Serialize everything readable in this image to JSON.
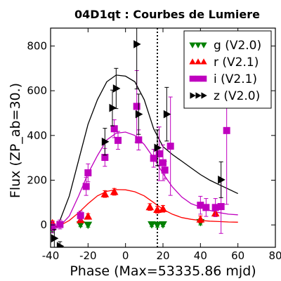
{
  "chart_data": {
    "type": "scatter",
    "title": "04D1qt : Courbes de Lumiere",
    "xlabel": "Phase (Max=53335.86 mjd)",
    "ylabel": "Flux (ZP_ab=30.)",
    "xlim": [
      -40,
      80
    ],
    "ylim": [
      -100,
      880
    ],
    "xticks": [
      -40,
      -20,
      0,
      20,
      40,
      60,
      80
    ],
    "xtick_labels": [
      "-40",
      "-20",
      "0",
      "20",
      "40",
      "60",
      "80"
    ],
    "yticks": [
      0,
      200,
      400,
      600,
      800
    ],
    "ytick_labels": [
      "0",
      "200",
      "400",
      "600",
      "800"
    ],
    "vline_x": 17,
    "grid": false,
    "legend_position": "top-right",
    "series": [
      {
        "name": "g (V2.0)",
        "color": "#008000",
        "marker": "triangle-down",
        "points": [
          {
            "x": -39,
            "y": -20,
            "err": 15
          },
          {
            "x": -24,
            "y": 2,
            "err": 10
          },
          {
            "x": -20,
            "y": 0,
            "err": 10
          },
          {
            "x": 14,
            "y": 2,
            "err": 10
          },
          {
            "x": 17,
            "y": 0,
            "err": 10
          },
          {
            "x": 20,
            "y": 2,
            "err": 10
          },
          {
            "x": 40,
            "y": 12,
            "err": 12
          }
        ]
      },
      {
        "name": "r (V2.1)",
        "color": "#ff0000",
        "marker": "triangle-up",
        "points": [
          {
            "x": -39,
            "y": 8,
            "err": 10
          },
          {
            "x": -24,
            "y": 22,
            "err": 12
          },
          {
            "x": -20,
            "y": 38,
            "err": 12
          },
          {
            "x": -11,
            "y": 138,
            "err": 15
          },
          {
            "x": -6,
            "y": 148,
            "err": 15
          },
          {
            "x": 13,
            "y": 80,
            "err": 15
          },
          {
            "x": 17,
            "y": 68,
            "err": 15
          },
          {
            "x": 20,
            "y": 72,
            "err": 15
          },
          {
            "x": 40,
            "y": 25,
            "err": 15
          },
          {
            "x": 48,
            "y": 52,
            "err": 15
          }
        ]
      },
      {
        "name": "i (V2.1)",
        "color": "#bf00bf",
        "marker": "square",
        "points": [
          {
            "x": -39,
            "y": -10,
            "err": 25
          },
          {
            "x": -35,
            "y": 2,
            "err": 20
          },
          {
            "x": -24,
            "y": 42,
            "err": 20
          },
          {
            "x": -21,
            "y": 172,
            "err": 40
          },
          {
            "x": -20,
            "y": 233,
            "err": 40
          },
          {
            "x": -11,
            "y": 302,
            "err": 40
          },
          {
            "x": -6,
            "y": 430,
            "err": 40
          },
          {
            "x": -4,
            "y": 378,
            "err": 40
          },
          {
            "x": 6,
            "y": 530,
            "err": 160
          },
          {
            "x": 7,
            "y": 380,
            "err": 45
          },
          {
            "x": 15,
            "y": 298,
            "err": 40
          },
          {
            "x": 18,
            "y": 318,
            "err": 120
          },
          {
            "x": 20,
            "y": 278,
            "err": 80
          },
          {
            "x": 21,
            "y": 245,
            "err": 40
          },
          {
            "x": 24,
            "y": 352,
            "err": 220
          },
          {
            "x": 40,
            "y": 88,
            "err": 40
          },
          {
            "x": 43,
            "y": 78,
            "err": 40
          },
          {
            "x": 48,
            "y": 78,
            "err": 40
          },
          {
            "x": 51,
            "y": 82,
            "err": 120
          },
          {
            "x": 54,
            "y": 422,
            "err": 330
          }
        ]
      },
      {
        "name": "z (V2.0)",
        "color": "#000000",
        "marker": "triangle-right",
        "points": [
          {
            "x": -38,
            "y": -60,
            "err": 40
          },
          {
            "x": -35,
            "y": -95,
            "err": 20
          },
          {
            "x": -11,
            "y": 372,
            "err": 60
          },
          {
            "x": -7,
            "y": 523,
            "err": 80
          },
          {
            "x": -5,
            "y": 610,
            "err": 90
          },
          {
            "x": 6,
            "y": 808,
            "err": 200
          },
          {
            "x": 7,
            "y": 495,
            "err": 90
          },
          {
            "x": 17,
            "y": 345,
            "err": 80
          },
          {
            "x": 22,
            "y": 495,
            "err": 120
          },
          {
            "x": 51,
            "y": 202,
            "err": 80
          }
        ]
      }
    ],
    "fits": [
      {
        "color": "#000000",
        "x": [
          -37,
          -35,
          -30,
          -25,
          -20,
          -15,
          -10,
          -5,
          0,
          5,
          10,
          15,
          20,
          25,
          30,
          35,
          40,
          45,
          50,
          55,
          60
        ],
        "y": [
          -10,
          20,
          130,
          290,
          450,
          560,
          640,
          670,
          665,
          640,
          560,
          430,
          350,
          315,
          285,
          255,
          225,
          200,
          180,
          160,
          140
        ]
      },
      {
        "color": "#bf00bf",
        "x": [
          -37,
          -35,
          -30,
          -25,
          -20,
          -15,
          -10,
          -5,
          0,
          5,
          10,
          15,
          20,
          25,
          30,
          35,
          40,
          45,
          50,
          55,
          60
        ],
        "y": [
          -15,
          -5,
          40,
          130,
          230,
          310,
          380,
          410,
          415,
          400,
          360,
          300,
          230,
          170,
          125,
          95,
          80,
          65,
          55,
          48,
          45
        ]
      },
      {
        "color": "#ff0000",
        "x": [
          -37,
          -35,
          -30,
          -25,
          -20,
          -15,
          -10,
          -5,
          0,
          5,
          10,
          15,
          20,
          25,
          30,
          35,
          40,
          45,
          50,
          55,
          60
        ],
        "y": [
          -10,
          -3,
          20,
          55,
          95,
          130,
          150,
          158,
          157,
          148,
          130,
          100,
          70,
          48,
          33,
          25,
          20,
          17,
          15,
          13,
          12
        ]
      }
    ]
  }
}
